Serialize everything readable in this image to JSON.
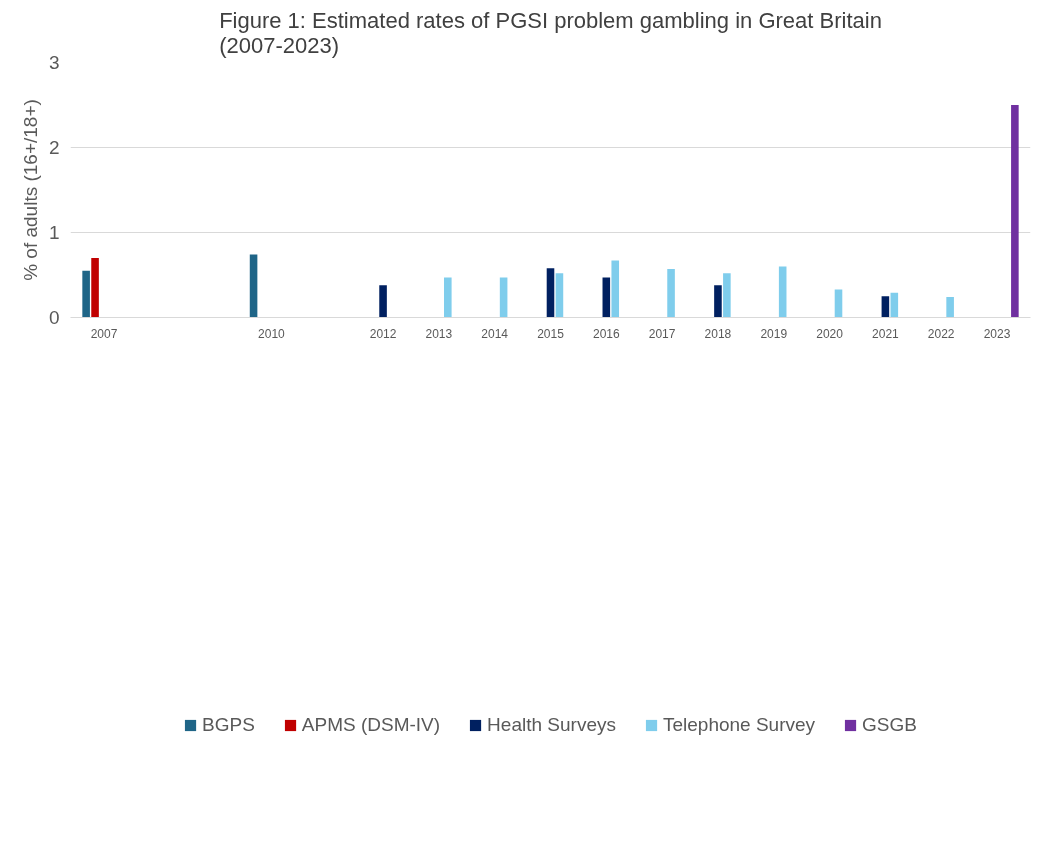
{
  "chart_data": {
    "type": "bar",
    "title": "Figure 1: Estimated rates of PGSI problem gambling in Great Britain (2007-2023)",
    "ylabel": "% of adults (16+/18+)",
    "categories": [
      "2007",
      null,
      null,
      "2010",
      null,
      "2012",
      "2013",
      "2014",
      "2015",
      "2016",
      "2017",
      "2018",
      "2019",
      "2020",
      "2021",
      "2022",
      "2023"
    ],
    "series": [
      {
        "name": "BGPS",
        "color": "#1f6587",
        "values": [
          0.55,
          null,
          null,
          0.74,
          null,
          null,
          null,
          null,
          null,
          null,
          null,
          null,
          null,
          null,
          null,
          null,
          null
        ]
      },
      {
        "name": "APMS (DSM-IV)",
        "color": "#c00000",
        "values": [
          0.7,
          null,
          null,
          null,
          null,
          null,
          null,
          null,
          null,
          null,
          null,
          null,
          null,
          null,
          null,
          null,
          null
        ]
      },
      {
        "name": "Health Surveys",
        "color": "#002060",
        "values": [
          null,
          null,
          null,
          null,
          null,
          0.38,
          null,
          null,
          0.58,
          0.47,
          null,
          0.38,
          null,
          null,
          0.25,
          null,
          null
        ]
      },
      {
        "name": "Telephone Survey",
        "color": "#7fcdec",
        "values": [
          null,
          null,
          null,
          null,
          null,
          null,
          0.47,
          0.47,
          0.52,
          0.67,
          0.57,
          0.52,
          0.6,
          0.33,
          0.29,
          0.24,
          null
        ]
      },
      {
        "name": "GSGB",
        "color": "#7030a0",
        "values": [
          null,
          null,
          null,
          null,
          null,
          null,
          null,
          null,
          null,
          null,
          null,
          null,
          null,
          null,
          null,
          null,
          2.5
        ]
      }
    ],
    "ylim": [
      0,
      3
    ],
    "yticks": [
      0,
      1,
      2,
      3
    ],
    "grid": "y",
    "legend": "bottom"
  }
}
